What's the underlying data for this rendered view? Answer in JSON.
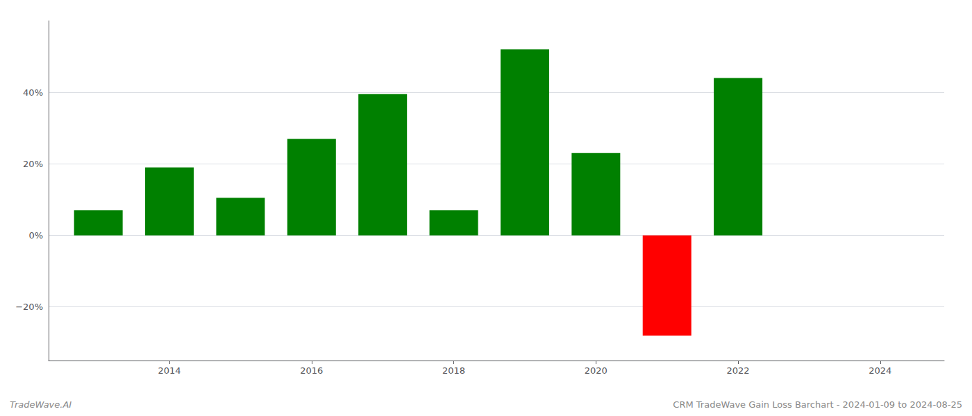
{
  "chart_data": {
    "type": "bar",
    "x": [
      2013,
      2014,
      2015,
      2016,
      2017,
      2018,
      2019,
      2020,
      2021,
      2022,
      2023
    ],
    "values": [
      7.0,
      19.0,
      10.5,
      27.0,
      39.5,
      7.0,
      52.0,
      23.0,
      -28.0,
      44.0,
      0
    ],
    "colors": [
      "#008000",
      "#008000",
      "#008000",
      "#008000",
      "#008000",
      "#008000",
      "#008000",
      "#008000",
      "#ff0000",
      "#008000",
      "#008000"
    ],
    "xlim": [
      2012.3,
      2024.9
    ],
    "xticks": [
      2014,
      2016,
      2018,
      2020,
      2022,
      2024
    ],
    "ylim": [
      -35,
      60
    ],
    "yticks": [
      {
        "value": -20,
        "label": "−20%"
      },
      {
        "value": 0,
        "label": "0%"
      },
      {
        "value": 20,
        "label": "20%"
      },
      {
        "value": 40,
        "label": "40%"
      }
    ],
    "grid": true,
    "annotations": [
      "TradeWave.AI",
      "CRM TradeWave Gain Loss Barchart - 2024-01-09 to 2024-08-25"
    ]
  }
}
